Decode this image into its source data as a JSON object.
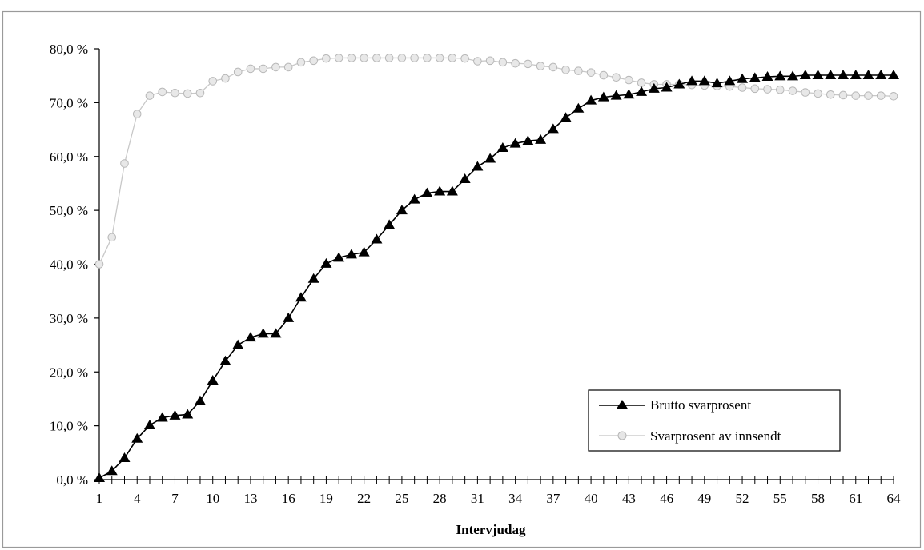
{
  "chart_data": {
    "type": "line",
    "title": "",
    "xlabel": "Intervjudag",
    "ylabel": "",
    "xlim": [
      1,
      64
    ],
    "ylim": [
      0,
      80
    ],
    "y_ticks": [
      0,
      10,
      20,
      30,
      40,
      50,
      60,
      70,
      80
    ],
    "y_tick_labels": [
      "0,0 %",
      "10,0 %",
      "20,0 %",
      "30,0 %",
      "40,0 %",
      "50,0 %",
      "60,0 %",
      "70,0 %",
      "80,0 %"
    ],
    "x_tick_labels": [
      "1",
      "4",
      "7",
      "10",
      "13",
      "16",
      "19",
      "22",
      "25",
      "28",
      "31",
      "34",
      "37",
      "40",
      "43",
      "46",
      "49",
      "52",
      "55",
      "58",
      "61",
      "64"
    ],
    "grid": false,
    "legend_position": "bottom-right",
    "x": [
      1,
      2,
      3,
      4,
      5,
      6,
      7,
      8,
      9,
      10,
      11,
      12,
      13,
      14,
      15,
      16,
      17,
      18,
      19,
      20,
      21,
      22,
      23,
      24,
      25,
      26,
      27,
      28,
      29,
      30,
      31,
      32,
      33,
      34,
      35,
      36,
      37,
      38,
      39,
      40,
      41,
      42,
      43,
      44,
      45,
      46,
      47,
      48,
      49,
      50,
      51,
      52,
      53,
      54,
      55,
      56,
      57,
      58,
      59,
      60,
      61,
      62,
      63,
      64
    ],
    "series": [
      {
        "name": "Brutto svarprosent",
        "color": "#000000",
        "marker": "triangle",
        "values": [
          0.3,
          1.6,
          4.0,
          7.6,
          10.1,
          11.5,
          11.9,
          12.1,
          14.6,
          18.4,
          22.0,
          25.0,
          26.4,
          27.1,
          27.1,
          30.0,
          33.8,
          37.3,
          40.1,
          41.2,
          41.8,
          42.2,
          44.6,
          47.3,
          50.0,
          52.0,
          53.2,
          53.5,
          53.5,
          55.8,
          58.1,
          59.6,
          61.6,
          62.4,
          62.9,
          63.1,
          65.1,
          67.2,
          68.9,
          70.4,
          71.0,
          71.3,
          71.5,
          72.0,
          72.6,
          72.8,
          73.4,
          74.0,
          74.0,
          73.6,
          74.0,
          74.4,
          74.6,
          74.8,
          74.9,
          74.9,
          75.1,
          75.1,
          75.1,
          75.1,
          75.1,
          75.1,
          75.1,
          75.1
        ]
      },
      {
        "name": "Svarprosent av innsendt",
        "color": "#bdbdbd",
        "marker": "circle",
        "values": [
          40.0,
          45.0,
          58.7,
          67.9,
          71.3,
          72.0,
          71.8,
          71.7,
          71.8,
          74.0,
          74.5,
          75.7,
          76.3,
          76.3,
          76.6,
          76.6,
          77.5,
          77.8,
          78.2,
          78.3,
          78.3,
          78.3,
          78.3,
          78.3,
          78.3,
          78.3,
          78.3,
          78.3,
          78.3,
          78.2,
          77.7,
          77.8,
          77.5,
          77.3,
          77.2,
          76.8,
          76.6,
          76.1,
          75.9,
          75.6,
          75.1,
          74.7,
          74.2,
          73.7,
          73.4,
          73.4,
          73.4,
          73.3,
          73.2,
          73.1,
          73.0,
          72.8,
          72.6,
          72.5,
          72.4,
          72.2,
          71.9,
          71.7,
          71.5,
          71.4,
          71.3,
          71.3,
          71.3,
          71.2
        ]
      }
    ]
  }
}
